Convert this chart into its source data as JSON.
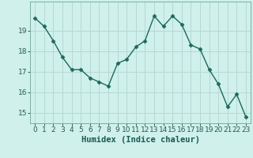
{
  "x": [
    0,
    1,
    2,
    3,
    4,
    5,
    6,
    7,
    8,
    9,
    10,
    11,
    12,
    13,
    14,
    15,
    16,
    17,
    18,
    19,
    20,
    21,
    22,
    23
  ],
  "y": [
    19.6,
    19.2,
    18.5,
    17.7,
    17.1,
    17.1,
    16.7,
    16.5,
    16.3,
    17.4,
    17.6,
    18.2,
    18.5,
    19.7,
    19.2,
    19.7,
    19.3,
    18.3,
    18.1,
    17.1,
    16.4,
    15.3,
    15.9,
    14.8
  ],
  "line_color": "#1a6b5a",
  "marker": "D",
  "marker_size": 2.5,
  "bg_color": "#cff0eb",
  "grid_color_major": "#b8d8d2",
  "grid_color_minor": "#cde8e3",
  "xlabel": "Humidex (Indice chaleur)",
  "ylim": [
    14.5,
    20.4
  ],
  "yticks": [
    15,
    16,
    17,
    18,
    19
  ],
  "xticks": [
    0,
    1,
    2,
    3,
    4,
    5,
    6,
    7,
    8,
    9,
    10,
    11,
    12,
    13,
    14,
    15,
    16,
    17,
    18,
    19,
    20,
    21,
    22,
    23
  ],
  "xlabel_fontsize": 7.5,
  "tick_fontsize": 6.5
}
